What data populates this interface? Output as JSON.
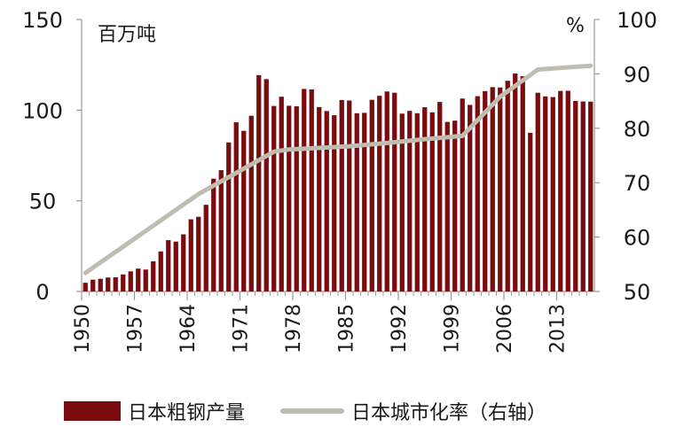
{
  "chart_data": {
    "type": "bar+line",
    "left_axis_unit": "百万吨",
    "right_axis_unit": "%",
    "left_ylim": [
      0,
      150
    ],
    "right_ylim": [
      50,
      100
    ],
    "left_ticks": [
      "0",
      "50",
      "100",
      "150"
    ],
    "right_ticks": [
      "50",
      "60",
      "70",
      "80",
      "90",
      "100"
    ],
    "x_tick_labels": [
      "1950",
      "1957",
      "1964",
      "1971",
      "1978",
      "1985",
      "1992",
      "1999",
      "2006",
      "2013"
    ],
    "x_start": 1950,
    "x_end": 2017,
    "series": [
      {
        "name": "日本粗钢产量",
        "kind": "bar",
        "axis": "left",
        "years": [
          1950,
          1951,
          1952,
          1953,
          1954,
          1955,
          1956,
          1957,
          1958,
          1959,
          1960,
          1961,
          1962,
          1963,
          1964,
          1965,
          1966,
          1967,
          1968,
          1969,
          1970,
          1971,
          1972,
          1973,
          1974,
          1975,
          1976,
          1977,
          1978,
          1979,
          1980,
          1981,
          1982,
          1983,
          1984,
          1985,
          1986,
          1987,
          1988,
          1989,
          1990,
          1991,
          1992,
          1993,
          1994,
          1995,
          1996,
          1997,
          1998,
          1999,
          2000,
          2001,
          2002,
          2003,
          2004,
          2005,
          2006,
          2007,
          2008,
          2009,
          2010,
          2011,
          2012,
          2013,
          2014,
          2015,
          2016,
          2017
        ],
        "values": [
          4.8,
          6.5,
          7.0,
          7.7,
          7.8,
          9.4,
          11.1,
          12.6,
          12.1,
          16.6,
          22.1,
          28.3,
          27.5,
          31.5,
          39.8,
          41.2,
          47.8,
          62.2,
          66.9,
          82.2,
          93.3,
          88.6,
          96.9,
          119.3,
          117.1,
          102.3,
          107.4,
          102.4,
          102.1,
          111.7,
          111.4,
          101.7,
          99.5,
          97.2,
          105.6,
          105.3,
          98.3,
          98.5,
          105.7,
          107.9,
          110.3,
          109.6,
          98.1,
          99.6,
          98.3,
          101.6,
          98.8,
          104.5,
          93.5,
          94.2,
          106.4,
          102.9,
          107.7,
          110.5,
          112.7,
          112.5,
          116.2,
          120.2,
          118.7,
          87.5,
          109.6,
          107.6,
          107.2,
          110.6,
          110.7,
          105.1,
          104.8,
          104.7
        ]
      },
      {
        "name": "日本城市化率（右轴）",
        "kind": "line",
        "axis": "right",
        "points": [
          [
            1950,
            53.4
          ],
          [
            1965,
            67.9
          ],
          [
            1975,
            75.7
          ],
          [
            1977,
            76.1
          ],
          [
            1985,
            76.7
          ],
          [
            1990,
            77.3
          ],
          [
            1995,
            78.0
          ],
          [
            2000,
            78.6
          ],
          [
            2005,
            85.8
          ],
          [
            2010,
            90.8
          ],
          [
            2017,
            91.5
          ]
        ]
      }
    ]
  }
}
